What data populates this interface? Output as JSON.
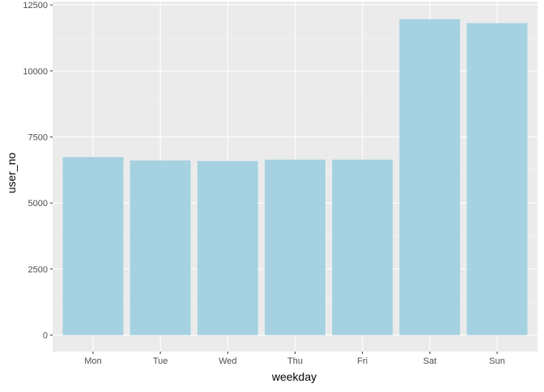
{
  "chart_data": {
    "type": "bar",
    "title": "",
    "xlabel": "weekday",
    "ylabel": "user_no",
    "categories": [
      "Mon",
      "Tue",
      "Wed",
      "Thu",
      "Fri",
      "Sat",
      "Sun"
    ],
    "values": [
      6740,
      6610,
      6590,
      6640,
      6640,
      11960,
      11810
    ],
    "ylim": [
      -625,
      12625
    ],
    "yticks": [
      0,
      2500,
      5000,
      7500,
      10000,
      12500
    ],
    "ytick_labels": [
      "0",
      "2500",
      "5000",
      "7500",
      "10000",
      "12500"
    ],
    "minor_grid": true,
    "grid": true,
    "legend": "none",
    "colors": {
      "bar": "#a5d1e1",
      "panel": "#ebebeb",
      "grid_major": "#ffffff",
      "grid_minor": "#f5f5f5"
    }
  }
}
